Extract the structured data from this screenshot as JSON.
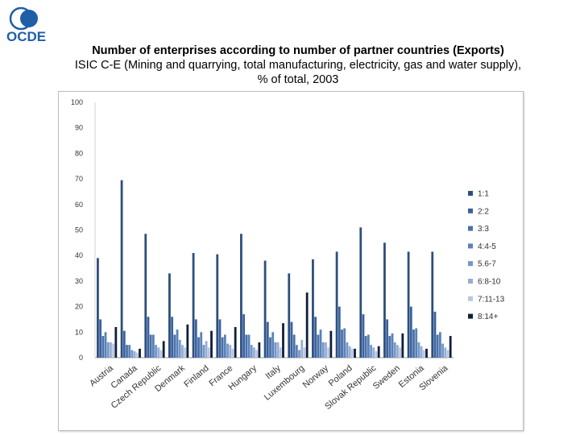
{
  "logo": {
    "text": "OCDE",
    "color": "#1f5fa8"
  },
  "title": "Number of enterprises according to number of partner countries (Exports)",
  "subtitle_line1": "ISIC C-E (Mining and quarrying, total manufacturing, electricity, gas and water supply),",
  "subtitle_line2": "% of total, 2003",
  "chart_data": {
    "type": "bar",
    "ylim": [
      0,
      100
    ],
    "yticks": [
      0,
      10,
      20,
      30,
      40,
      50,
      60,
      70,
      80,
      90,
      100
    ],
    "grid": false,
    "legend_position": "right",
    "categories": [
      "Austria",
      "Canada",
      "Czech Republic",
      "Denmark",
      "Finland",
      "France",
      "Hungary",
      "Italy",
      "Luxembourg",
      "Norway",
      "Poland",
      "Slovak Republic",
      "Sweden",
      "Estonia",
      "Slovenia"
    ],
    "series": [
      {
        "name": "1:1",
        "color": "#2e4f7d",
        "values": [
          39,
          69.5,
          48.5,
          33,
          41,
          40.5,
          48.5,
          38,
          33,
          38.5,
          41.5,
          51,
          45,
          41.5,
          41.5
        ]
      },
      {
        "name": "2:2",
        "color": "#3a62a0",
        "values": [
          15,
          10.5,
          16,
          16,
          15,
          15,
          17,
          14,
          14,
          16,
          20,
          17,
          15,
          20,
          18
        ]
      },
      {
        "name": "3:3",
        "color": "#4b70a8",
        "values": [
          8.5,
          5,
          9,
          9,
          8,
          8,
          9,
          8,
          9,
          9,
          11,
          8.5,
          8.5,
          11,
          9
        ]
      },
      {
        "name": "4:4-5",
        "color": "#5882ba",
        "values": [
          10,
          5,
          9,
          11,
          10,
          9,
          9,
          10,
          5,
          11,
          11.5,
          9,
          9.5,
          11.5,
          10
        ]
      },
      {
        "name": "5.6-7",
        "color": "#7597c6",
        "values": [
          6,
          3,
          5,
          7,
          5,
          5.5,
          5,
          6,
          3,
          6,
          6,
          5,
          6,
          6,
          5.5
        ]
      },
      {
        "name": "6:8-10",
        "color": "#95afd4",
        "values": [
          6,
          2.5,
          4,
          5,
          6.5,
          5,
          4,
          6,
          7,
          6,
          4.5,
          4,
          5,
          4.5,
          4
        ]
      },
      {
        "name": "7:11-13",
        "color": "#b7c8e3",
        "values": [
          5.5,
          2,
          3,
          4,
          4,
          3.5,
          3,
          4,
          4,
          4,
          3.5,
          2.5,
          4,
          3,
          3
        ]
      },
      {
        "name": "8:14+",
        "color": "#0f1f3a",
        "values": [
          12,
          3.5,
          6.5,
          13,
          10.5,
          12,
          6,
          13.5,
          25.5,
          10.5,
          3.5,
          4.5,
          9.5,
          3.5,
          8.5
        ]
      }
    ]
  }
}
